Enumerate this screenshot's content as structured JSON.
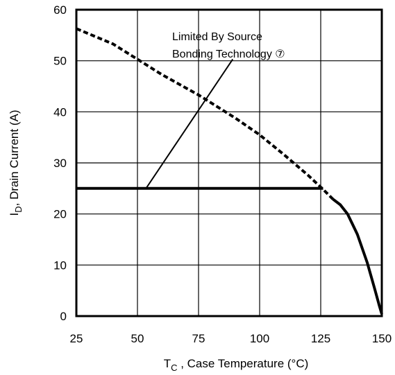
{
  "chart_data": {
    "type": "line",
    "title": "",
    "xlabel": {
      "main": "T",
      "sub": "C",
      "rest": " , Case Temperature (°C)"
    },
    "ylabel": {
      "main": "I",
      "sub": "D",
      "rest": ",  Drain Current (A)"
    },
    "xlim": [
      25,
      150
    ],
    "ylim": [
      0,
      60
    ],
    "x_ticks": [
      25,
      50,
      75,
      100,
      125,
      150
    ],
    "y_ticks": [
      0,
      10,
      20,
      30,
      40,
      50,
      60
    ],
    "x_tick_labels": [
      "25",
      "50",
      "75",
      "100",
      "125",
      "150"
    ],
    "y_tick_labels": [
      "0",
      "10",
      "20",
      "30",
      "40",
      "50",
      "60"
    ],
    "grid": true,
    "series": [
      {
        "style": "dashed",
        "points": [
          [
            25,
            56.3
          ],
          [
            40,
            53.3
          ],
          [
            50,
            50.3
          ],
          [
            60,
            47.3
          ],
          [
            75,
            43.3
          ],
          [
            90,
            38.8
          ],
          [
            100,
            35.5
          ],
          [
            110,
            31.6
          ],
          [
            120,
            27.5
          ],
          [
            126,
            24.8
          ],
          [
            130,
            22.9
          ]
        ]
      },
      {
        "style": "solid",
        "points": [
          [
            130,
            22.9
          ],
          [
            133,
            21.8
          ],
          [
            136,
            20
          ],
          [
            140,
            16
          ],
          [
            144,
            10.5
          ],
          [
            147,
            5.5
          ],
          [
            149,
            2
          ],
          [
            150,
            0.4
          ]
        ]
      },
      {
        "style": "solid",
        "points": [
          [
            25,
            25
          ],
          [
            126,
            25
          ]
        ]
      }
    ],
    "annotation": {
      "line1": "Limited By Source",
      "line2": "Bonding Technology ⑦",
      "leader": [
        [
          53.5,
          25
        ],
        [
          89,
          50.3
        ]
      ]
    }
  }
}
